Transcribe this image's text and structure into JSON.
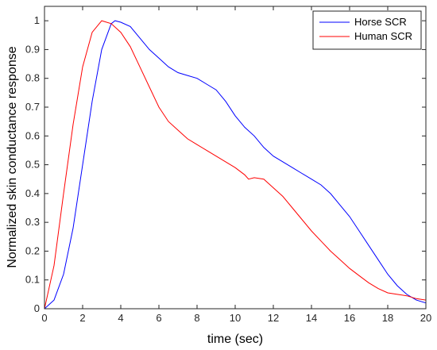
{
  "chart_data": {
    "type": "line",
    "xlabel": "time (sec)",
    "ylabel": "Normalized skin conductance response",
    "xlim": [
      0,
      20
    ],
    "ylim": [
      0,
      1.05
    ],
    "x_ticks": [
      "0",
      "2",
      "4",
      "6",
      "8",
      "10",
      "12",
      "14",
      "16",
      "18",
      "20"
    ],
    "y_ticks": [
      "0",
      "0.1",
      "0.2",
      "0.3",
      "0.4",
      "0.5",
      "0.6",
      "0.7",
      "0.8",
      "0.9",
      "1"
    ],
    "grid": false,
    "legend_position": "top-right",
    "series": [
      {
        "name": "Horse SCR",
        "color": "#0000ff",
        "points": [
          [
            0,
            0
          ],
          [
            0.5,
            0.03
          ],
          [
            1,
            0.12
          ],
          [
            1.5,
            0.28
          ],
          [
            2,
            0.5
          ],
          [
            2.5,
            0.72
          ],
          [
            3,
            0.9
          ],
          [
            3.5,
            0.99
          ],
          [
            3.7,
            1.0
          ],
          [
            4,
            0.995
          ],
          [
            4.5,
            0.98
          ],
          [
            5,
            0.94
          ],
          [
            5.5,
            0.9
          ],
          [
            6,
            0.87
          ],
          [
            6.5,
            0.84
          ],
          [
            7,
            0.82
          ],
          [
            7.5,
            0.81
          ],
          [
            8,
            0.8
          ],
          [
            8.5,
            0.78
          ],
          [
            9,
            0.76
          ],
          [
            9.5,
            0.72
          ],
          [
            10,
            0.67
          ],
          [
            10.5,
            0.63
          ],
          [
            11,
            0.6
          ],
          [
            11.5,
            0.56
          ],
          [
            12,
            0.53
          ],
          [
            12.5,
            0.51
          ],
          [
            13,
            0.49
          ],
          [
            13.5,
            0.47
          ],
          [
            14,
            0.45
          ],
          [
            14.5,
            0.43
          ],
          [
            15,
            0.4
          ],
          [
            15.5,
            0.36
          ],
          [
            16,
            0.32
          ],
          [
            16.5,
            0.27
          ],
          [
            17,
            0.22
          ],
          [
            17.5,
            0.17
          ],
          [
            18,
            0.12
          ],
          [
            18.5,
            0.08
          ],
          [
            19,
            0.05
          ],
          [
            19.5,
            0.03
          ],
          [
            20,
            0.02
          ]
        ]
      },
      {
        "name": "Human SCR",
        "color": "#ff0000",
        "points": [
          [
            0,
            0
          ],
          [
            0.5,
            0.15
          ],
          [
            1,
            0.4
          ],
          [
            1.5,
            0.64
          ],
          [
            2,
            0.84
          ],
          [
            2.5,
            0.96
          ],
          [
            3,
            1.0
          ],
          [
            3.5,
            0.99
          ],
          [
            4,
            0.96
          ],
          [
            4.5,
            0.91
          ],
          [
            5,
            0.84
          ],
          [
            5.5,
            0.77
          ],
          [
            6,
            0.7
          ],
          [
            6.5,
            0.65
          ],
          [
            7,
            0.62
          ],
          [
            7.5,
            0.59
          ],
          [
            8,
            0.57
          ],
          [
            8.5,
            0.55
          ],
          [
            9,
            0.53
          ],
          [
            9.5,
            0.51
          ],
          [
            10,
            0.49
          ],
          [
            10.5,
            0.465
          ],
          [
            10.7,
            0.45
          ],
          [
            11,
            0.455
          ],
          [
            11.5,
            0.45
          ],
          [
            12,
            0.42
          ],
          [
            12.5,
            0.39
          ],
          [
            13,
            0.35
          ],
          [
            13.5,
            0.31
          ],
          [
            14,
            0.27
          ],
          [
            14.5,
            0.235
          ],
          [
            15,
            0.2
          ],
          [
            15.5,
            0.17
          ],
          [
            16,
            0.14
          ],
          [
            16.5,
            0.115
          ],
          [
            17,
            0.09
          ],
          [
            17.5,
            0.07
          ],
          [
            18,
            0.055
          ],
          [
            18.5,
            0.05
          ],
          [
            19,
            0.045
          ],
          [
            19.5,
            0.035
          ],
          [
            20,
            0.03
          ]
        ]
      }
    ]
  }
}
